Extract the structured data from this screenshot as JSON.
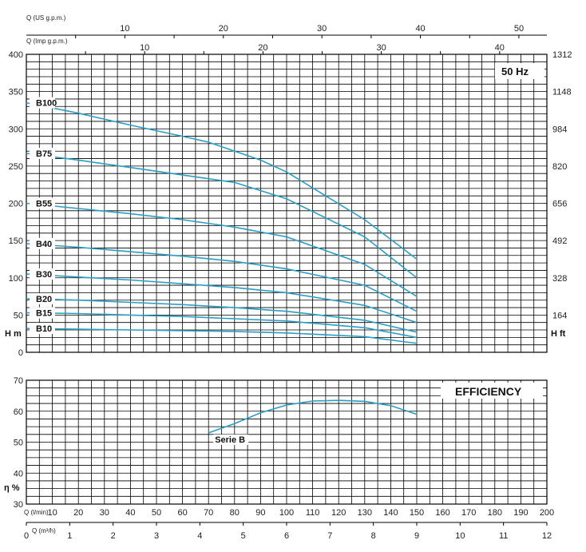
{
  "chart_data": [
    {
      "type": "line",
      "title": "",
      "top_axes": {
        "us_gpm": {
          "label": "Q (US g.p.m.)",
          "ticks": [
            "10",
            "20",
            "30",
            "40",
            "50"
          ]
        },
        "imp_gpm": {
          "label": "Q (Imp g.p.m.)",
          "ticks": [
            "10",
            "20",
            "30",
            "40"
          ]
        }
      },
      "ylabel": "H m",
      "ylabel_right": "H ft",
      "ylim": [
        0,
        400
      ],
      "yticks": [
        "0",
        "50",
        "100",
        "150",
        "200",
        "250",
        "300",
        "350",
        "400"
      ],
      "yticks_right": [
        "164",
        "328",
        "492",
        "656",
        "820",
        "984",
        "1148",
        "1312"
      ],
      "freq_label": "50 Hz",
      "xlim": [
        0,
        200
      ],
      "x_unit": "Q (l/min)",
      "series": [
        {
          "name": "B100",
          "x": [
            0,
            20,
            40,
            60,
            70,
            90,
            100,
            130,
            150
          ],
          "y": [
            335,
            321,
            305,
            290,
            282,
            258,
            242,
            178,
            125
          ]
        },
        {
          "name": "B75",
          "x": [
            0,
            20,
            40,
            60,
            80,
            100,
            130,
            150
          ],
          "y": [
            267,
            258,
            248,
            238,
            228,
            206,
            155,
            100
          ]
        },
        {
          "name": "B55",
          "x": [
            0,
            20,
            40,
            60,
            80,
            100,
            130,
            150
          ],
          "y": [
            200,
            193,
            186,
            178,
            168,
            155,
            118,
            75
          ]
        },
        {
          "name": "B40",
          "x": [
            0,
            20,
            40,
            60,
            80,
            100,
            130,
            150
          ],
          "y": [
            146,
            141,
            135,
            129,
            122,
            112,
            90,
            55
          ]
        },
        {
          "name": "B30",
          "x": [
            0,
            20,
            40,
            60,
            80,
            100,
            130,
            150
          ],
          "y": [
            105,
            101,
            97,
            92,
            87,
            80,
            63,
            40
          ]
        },
        {
          "name": "B20",
          "x": [
            0,
            20,
            40,
            60,
            80,
            100,
            130,
            150
          ],
          "y": [
            72,
            70,
            67,
            64,
            60,
            55,
            43,
            27
          ]
        },
        {
          "name": "B15",
          "x": [
            0,
            20,
            40,
            60,
            80,
            100,
            130,
            150
          ],
          "y": [
            53,
            52,
            50,
            48,
            45,
            42,
            33,
            20
          ]
        },
        {
          "name": "B10",
          "x": [
            0,
            20,
            40,
            60,
            80,
            100,
            130,
            150
          ],
          "y": [
            32,
            31,
            30,
            29,
            28,
            26,
            21,
            12
          ]
        }
      ]
    },
    {
      "type": "line",
      "title": "EFFICIENCY",
      "ylabel": "η %",
      "ylim": [
        30,
        70
      ],
      "yticks": [
        "30",
        "40",
        "50",
        "60",
        "70"
      ],
      "xlim": [
        0,
        200
      ],
      "x_unit": "Q (l/min)",
      "xticks": [
        "10",
        "20",
        "30",
        "40",
        "50",
        "60",
        "70",
        "80",
        "90",
        "100",
        "110",
        "120",
        "130",
        "140",
        "150",
        "160",
        "170",
        "180",
        "190",
        "200"
      ],
      "x2_unit": "Q (m³/h)",
      "x2ticks": [
        "0",
        "1",
        "2",
        "3",
        "4",
        "5",
        "6",
        "7",
        "8",
        "9",
        "10",
        "11",
        "12"
      ],
      "series": [
        {
          "name": "Serie B",
          "x": [
            70,
            80,
            90,
            100,
            110,
            120,
            130,
            140,
            150
          ],
          "y": [
            53,
            56,
            59.5,
            62,
            63.3,
            63.5,
            63.2,
            61.8,
            59
          ]
        }
      ]
    }
  ],
  "colors": {
    "curve": "#2a9ec4",
    "grid": "#000000",
    "text": "#222222"
  }
}
